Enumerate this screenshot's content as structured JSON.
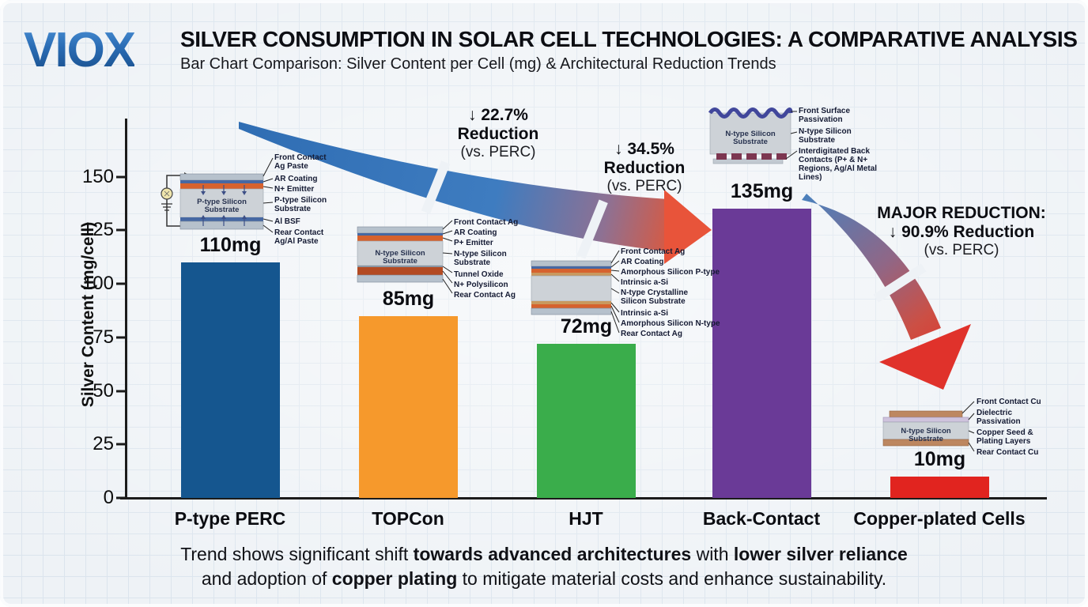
{
  "logo": "VIOX",
  "header": {
    "title": "SILVER CONSUMPTION IN SOLAR CELL TECHNOLOGIES: A COMPARATIVE ANALYSIS",
    "subtitle": "Bar Chart Comparison: Silver Content per Cell (mg) & Architectural Reduction Trends"
  },
  "chart_data": {
    "type": "bar",
    "title": "Silver Consumption in Solar Cell Technologies: A Comparative Analysis",
    "categories": [
      "P-type PERC",
      "TOPCon",
      "HJT",
      "Back-Contact",
      "Copper-plated Cells"
    ],
    "values": [
      110,
      85,
      72,
      135,
      10
    ],
    "value_labels": [
      "110mg",
      "85mg",
      "72mg",
      "135mg",
      "10mg"
    ],
    "bar_colors": [
      "#15568f",
      "#f6992c",
      "#3aad4b",
      "#6a3a97",
      "#e1241f"
    ],
    "xlabel": "",
    "ylabel": "Silver Content (mg/cell)",
    "yticks": [
      0,
      25,
      50,
      75,
      100,
      125,
      150
    ],
    "ylim": [
      0,
      160
    ],
    "grid": "graph-paper background grid",
    "legend_position": "none"
  },
  "annotations": [
    {
      "line1": "↓ 22.7%",
      "line2": "Reduction",
      "line3": "(vs. PERC)"
    },
    {
      "line1": "↓ 34.5%",
      "line2": "Reduction",
      "line3": "(vs. PERC)"
    },
    {
      "line1": "MAJOR REDUCTION:",
      "line2": "↓ 90.9% Reduction",
      "line3": "(vs. PERC)"
    }
  ],
  "arrow_colors": {
    "start_blue": "#2f6db3",
    "end_red": "#e8543a",
    "curved_red": "#e0322b"
  },
  "diagrams": {
    "perc": {
      "substrate": "P-type Silicon Substrate",
      "labels": [
        "Front Contact Ag Paste",
        "AR Coating",
        "N+ Emitter",
        "P-type Silicon Substrate",
        "Al BSF",
        "Rear Contact Ag/Al Paste"
      ]
    },
    "topcon": {
      "substrate": "N-type Silicon Substrate",
      "labels": [
        "Front Contact Ag",
        "AR Coating",
        "P+ Emitter",
        "N-type Silicon Substrate",
        "Tunnel Oxide",
        "N+ Polysilicon",
        "Rear Contact Ag"
      ]
    },
    "hjt": {
      "labels": [
        "Front Contact Ag",
        "AR Coating",
        "Amorphous Silicon P-type",
        "Intrinsic a-Si",
        "N-type Crystalline Silicon Substrate",
        "Intrinsic a-Si",
        "Amorphous Silicon N-type",
        "Rear Contact Ag"
      ]
    },
    "backcontact": {
      "substrate": "N-type Silicon Substrate",
      "labels": [
        "Front Surface Passivation",
        "N-type Silicon Substrate",
        "Interdigitated Back Contacts (P+ & N+ Regions, Ag/Al Metal Lines)"
      ]
    },
    "copper": {
      "substrate": "N-type Silicon Substrate",
      "labels": [
        "Front Contact Cu",
        "Dielectric Passivation",
        "Copper Seed & Plating Layers",
        "Rear Contact Cu"
      ]
    }
  },
  "footer": {
    "segments": [
      {
        "text": "Trend shows significant shift "
      },
      {
        "text": "towards advanced architectures"
      },
      {
        "text": " with "
      },
      {
        "text": "lower silver reliance"
      },
      {
        "text": " and adoption of "
      },
      {
        "text": "copper plating"
      },
      {
        "text": " to mitigate material costs and enhance sustainability."
      }
    ]
  }
}
